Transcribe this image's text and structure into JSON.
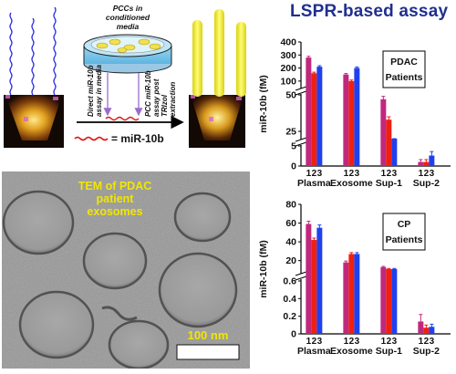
{
  "main_title": "LSPR-based assay",
  "colors": {
    "title": "#1f2f8f",
    "bar_1": "#c0287e",
    "bar_2": "#f02010",
    "bar_3": "#2040f0",
    "tem_label": "#f2e600"
  },
  "schematic": {
    "dish_label": [
      "PCCs in",
      "conditioned",
      "media"
    ],
    "direct_assay_label": [
      "Direct miR-10b",
      "assay in media"
    ],
    "pcc_assay_label": [
      "PCC miR-10b",
      "assay post",
      "TRIzol",
      "extraction"
    ],
    "legend_label": "= miR-10b"
  },
  "tem": {
    "caption": [
      "TEM of PDAC",
      "patient",
      "exosomes"
    ],
    "scale_label": "100 nm"
  },
  "chart_data": [
    {
      "type": "bar",
      "legend_box": [
        "PDAC",
        "Patients"
      ],
      "ylabel": "miR-10b (fM)",
      "categories": [
        "Plasma",
        "Exosome",
        "Sup-1",
        "Sup-2"
      ],
      "bar_index_labels": [
        "1",
        "2",
        "3"
      ],
      "series_colors": [
        "#c0287e",
        "#f02010",
        "#2040f0"
      ],
      "values": [
        [
          280,
          160,
          210
        ],
        [
          150,
          100,
          200
        ],
        [
          47,
          33,
          10
        ],
        [
          1.0,
          1.0,
          2.6
        ]
      ],
      "errors": [
        [
          10,
          8,
          8
        ],
        [
          8,
          8,
          8
        ],
        [
          2,
          2,
          1
        ],
        [
          0.6,
          0.6,
          1.0
        ]
      ],
      "y_axis_break": {
        "segments": [
          {
            "range": [
              0,
              5
            ],
            "ticks": [
              0,
              5
            ]
          },
          {
            "range": [
              20,
              50
            ],
            "ticks": [
              25,
              50
            ]
          },
          {
            "range": [
              50,
              400
            ],
            "ticks": [
              100,
              200,
              300,
              400
            ]
          }
        ]
      }
    },
    {
      "type": "bar",
      "legend_box": [
        "CP",
        "Patients"
      ],
      "ylabel": "miR-10b (fM)",
      "categories": [
        "Plasma",
        "Exosome",
        "Sup-1",
        "Sup-2"
      ],
      "bar_index_labels": [
        "1",
        "2",
        "3"
      ],
      "series_colors": [
        "#c0287e",
        "#f02010",
        "#2040f0"
      ],
      "values": [
        [
          59,
          42,
          55
        ],
        [
          18,
          27,
          27
        ],
        [
          13,
          11,
          11
        ],
        [
          0.14,
          0.07,
          0.08
        ]
      ],
      "errors": [
        [
          3,
          2,
          3
        ],
        [
          1.5,
          1.5,
          1.5
        ],
        [
          0.8,
          0.6,
          0.6
        ],
        [
          0.08,
          0.03,
          0.03
        ]
      ],
      "y_axis_break": {
        "segments": [
          {
            "range": [
              0,
              0.6
            ],
            "ticks": [
              0.0,
              0.2,
              0.4,
              0.6
            ]
          },
          {
            "range": [
              8,
              80
            ],
            "ticks": [
              20,
              40,
              60,
              80
            ]
          }
        ]
      }
    }
  ]
}
